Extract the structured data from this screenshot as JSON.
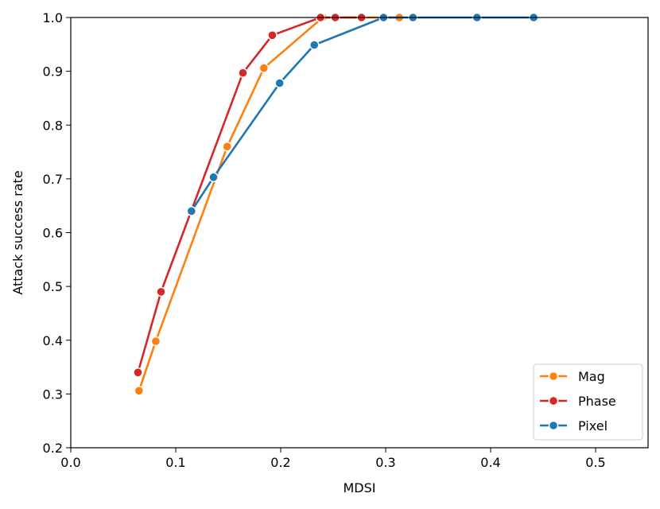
{
  "chart_data": {
    "type": "line",
    "xlabel": "MDSI",
    "ylabel": "Attack success rate",
    "xlim": [
      0.0,
      0.55
    ],
    "ylim": [
      0.2,
      1.0
    ],
    "xticks": [
      "0.0",
      "0.1",
      "0.2",
      "0.3",
      "0.4",
      "0.5"
    ],
    "yticks": [
      "0.2",
      "0.3",
      "0.4",
      "0.5",
      "0.6",
      "0.7",
      "0.8",
      "0.9",
      "1.0"
    ],
    "grid": false,
    "legend_position": "bottom-right",
    "series": [
      {
        "name": "Mag",
        "color": "#ff7f0e",
        "x": [
          0.065,
          0.081,
          0.149,
          0.184,
          0.24,
          0.313
        ],
        "y": [
          0.306,
          0.398,
          0.76,
          0.906,
          1.0,
          1.0
        ]
      },
      {
        "name": "Phase",
        "color": "#d62728",
        "x": [
          0.064,
          0.086,
          0.164,
          0.192,
          0.238,
          0.252,
          0.277
        ],
        "y": [
          0.34,
          0.49,
          0.897,
          0.967,
          1.0,
          1.0,
          1.0
        ]
      },
      {
        "name": "Pixel",
        "color": "#1f77b4",
        "x": [
          0.115,
          0.136,
          0.199,
          0.232,
          0.298,
          0.326,
          0.387,
          0.441
        ],
        "y": [
          0.64,
          0.703,
          0.878,
          0.949,
          1.0,
          1.0,
          1.0,
          1.0
        ]
      }
    ]
  }
}
